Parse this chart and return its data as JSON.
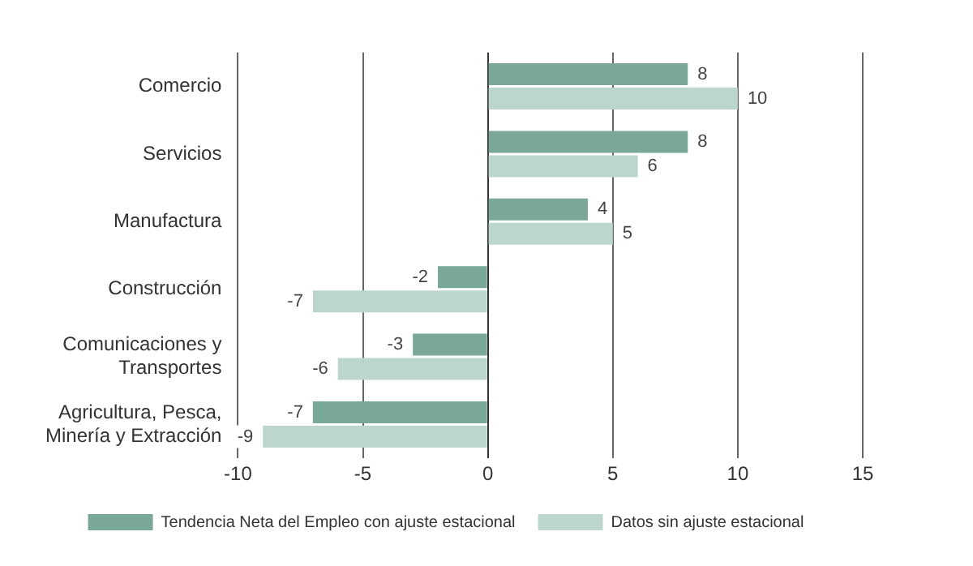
{
  "chart_data": {
    "type": "bar",
    "orientation": "horizontal",
    "categories": [
      "Comercio",
      "Servicios",
      "Manufactura",
      "Construcción",
      "Comunicaciones y Transportes",
      "Agricultura, Pesca, Minería y Extracción"
    ],
    "series": [
      {
        "name": "Tendencia Neta del Empleo con ajuste estacional",
        "color": "#7aa898",
        "values": [
          8,
          8,
          4,
          -2,
          -3,
          -7
        ]
      },
      {
        "name": "Datos sin ajuste estacional",
        "color": "#bdd6cd",
        "values": [
          10,
          6,
          5,
          -7,
          -6,
          -9
        ]
      }
    ],
    "xlim": [
      -10,
      15
    ],
    "xticks": [
      -10,
      -5,
      0,
      5,
      10,
      15
    ],
    "grid": "x",
    "data_labels": true,
    "legend": "bottom"
  }
}
